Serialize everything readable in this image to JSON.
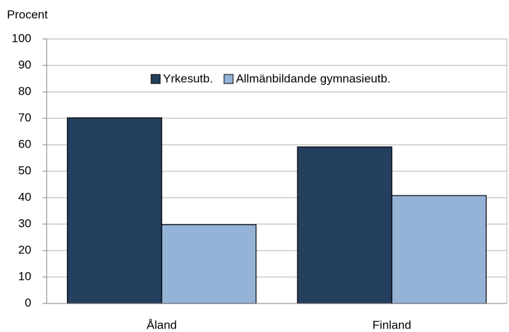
{
  "chart_data": {
    "type": "bar",
    "y_axis_label": "Procent",
    "categories": [
      "Åland",
      "Finland"
    ],
    "series": [
      {
        "name": "Yrkesutb.",
        "color": "#253f5f",
        "values": [
          70.2,
          59.2
        ]
      },
      {
        "name": "Allmänbildande gymnasieutb.",
        "color": "#95b3d7",
        "values": [
          29.8,
          40.8
        ]
      }
    ],
    "ylim": [
      0,
      100
    ],
    "yticks": [
      0,
      10,
      20,
      30,
      40,
      50,
      60,
      70,
      80,
      90,
      100
    ],
    "grid": true,
    "legend": "top"
  }
}
